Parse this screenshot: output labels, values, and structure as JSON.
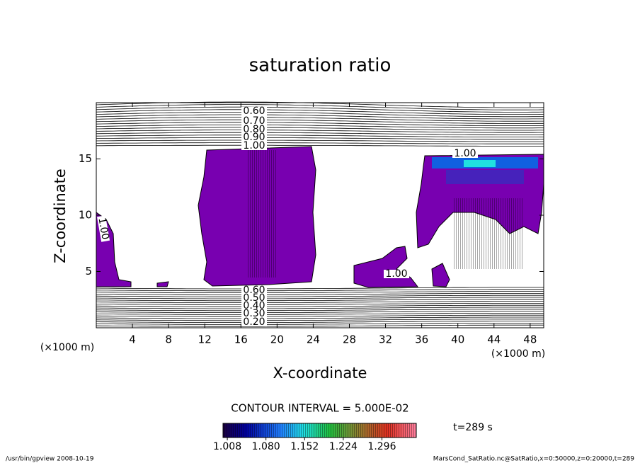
{
  "chart_data": {
    "type": "contour",
    "title": "saturation ratio",
    "xlabel": "X-coordinate",
    "ylabel": "Z-coordinate",
    "x_unit": "(×1000 m)",
    "y_unit": "(×1000 m)",
    "xlim": [
      0,
      49.5
    ],
    "ylim": [
      0,
      20
    ],
    "xticks": [
      4,
      8,
      12,
      16,
      20,
      24,
      28,
      32,
      36,
      40,
      44,
      48
    ],
    "yticks": [
      5,
      10,
      15
    ],
    "fill_color": "#7800b0",
    "contour_labels_top": [
      {
        "value": 0.6,
        "label": "0.60"
      },
      {
        "value": 0.7,
        "label": "0.70"
      },
      {
        "value": 0.8,
        "label": "0.80"
      },
      {
        "value": 0.9,
        "label": "0.90"
      },
      {
        "value": 1,
        "label": "1.00"
      }
    ],
    "contour_labels_bottom": [
      {
        "value": 0.6,
        "label": "0.60"
      },
      {
        "value": 0.5,
        "label": "0.50"
      },
      {
        "value": 0.4,
        "label": "0.40"
      },
      {
        "value": 0.3,
        "label": "0.30"
      },
      {
        "value": 0.2,
        "label": "0.20"
      }
    ],
    "contour_labels_inner": [
      {
        "value": 1,
        "label": "1.00"
      },
      {
        "value": 1,
        "label": "1.00"
      },
      {
        "value": 1,
        "label": "1.00"
      }
    ],
    "contour_interval_label": "CONTOUR INTERVAL = 5.000E-02",
    "colorbar": {
      "lim": [
        1.0,
        1.36
      ],
      "ticks": [
        1.008,
        {
          "value": 1.08,
          "label": "1.080"
        },
        1.152,
        1.224,
        1.296
      ]
    },
    "time_label": "t=289 s",
    "footer_left": "/usr/bin/gpview  2008-10-19",
    "footer_right": "MarsCond_SatRatio.nc@SatRatio,x=0:50000,z=0:20000,t=289"
  }
}
